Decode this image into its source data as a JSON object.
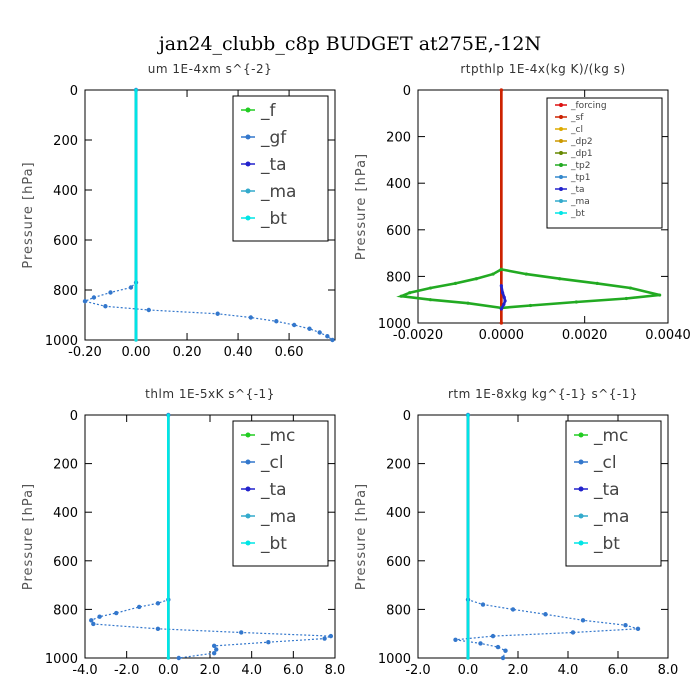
{
  "title": "jan24_clubb_c8p  BUDGET at275E,-12N",
  "colors": {
    "f": "#22cc22",
    "gf": "#3377cc",
    "ta": "#2222cc",
    "ma": "#33aacc",
    "bt": "#00e5e5",
    "forcing": "#dd1111",
    "sf": "#cc2200",
    "cl": "#ddaa00",
    "dp2": "#cc9900",
    "dp1": "#668800",
    "tp2": "#22aa22",
    "tp1": "#3388cc",
    "mc": "#22cc22"
  },
  "chart_data": [
    {
      "type": "line",
      "title": "um   1E-4xm s^{-2}",
      "ylabel": "Pressure [hPa]",
      "xlim": [
        -0.2,
        0.78
      ],
      "ylim": [
        1000,
        0
      ],
      "xticks": [
        -0.2,
        0.0,
        0.2,
        0.4,
        0.6
      ],
      "xtick_labels": [
        "-0.20",
        "0.00",
        "0.20",
        "0.40",
        "0.60"
      ],
      "yticks": [
        0,
        200,
        400,
        600,
        800,
        1000
      ],
      "legend": "top-right",
      "legend_items": [
        "_f",
        "_gf",
        "_ta",
        "_ma",
        "_bt"
      ],
      "series": [
        {
          "name": "_f",
          "color": "f",
          "style": "line",
          "x": [
            0.0,
            0.0
          ],
          "y": [
            0,
            1000
          ]
        },
        {
          "name": "_gf",
          "color": "gf",
          "style": "dotted",
          "x": [
            0.0,
            0.0,
            -0.02,
            -0.1,
            -0.165,
            -0.2,
            -0.12,
            0.05,
            0.32,
            0.45,
            0.55,
            0.62,
            0.68,
            0.72,
            0.75,
            0.77
          ],
          "y": [
            0,
            770,
            790,
            810,
            830,
            845,
            865,
            880,
            895,
            910,
            925,
            940,
            955,
            970,
            985,
            1000
          ]
        },
        {
          "name": "_ta",
          "color": "ta",
          "style": "line",
          "x": [
            0.0,
            0.0
          ],
          "y": [
            0,
            1000
          ]
        },
        {
          "name": "_ma",
          "color": "ma",
          "style": "line",
          "x": [
            0.0,
            0.0
          ],
          "y": [
            0,
            1000
          ]
        },
        {
          "name": "_bt",
          "color": "bt",
          "style": "line",
          "x": [
            0.0,
            0.0
          ],
          "y": [
            0,
            1000
          ]
        }
      ]
    },
    {
      "type": "line",
      "title": "rtpthlp   1E-4x(kg K)/(kg s)",
      "ylabel": "Pressure [hPa]",
      "xlim": [
        -0.002,
        0.004
      ],
      "ylim": [
        1000,
        0
      ],
      "xticks": [
        -0.002,
        0.0,
        0.002,
        0.004
      ],
      "xtick_labels": [
        "-0.0020",
        "0.0000",
        "0.0020",
        "0.0040"
      ],
      "yticks": [
        0,
        200,
        400,
        600,
        800,
        1000
      ],
      "legend": "top-right",
      "legend_items": [
        "_forcing",
        "_sf",
        "_cl",
        "_dp2",
        "_dp1",
        "_tp2",
        "_tp1",
        "_ta",
        "_ma",
        "_bt"
      ],
      "series": [
        {
          "name": "_forcing",
          "color": "forcing",
          "style": "line",
          "x": [
            0.0,
            0.0
          ],
          "y": [
            0,
            1000
          ]
        },
        {
          "name": "_sf",
          "color": "sf",
          "style": "line",
          "x": [
            0.0,
            0.0
          ],
          "y": [
            0,
            1000
          ]
        },
        {
          "name": "_tp2a",
          "color": "tp2",
          "style": "line",
          "x": [
            0.0,
            -0.0002,
            -0.0006,
            -0.0011,
            -0.0017,
            -0.0022,
            -0.0024,
            -0.0017,
            -0.0008,
            0.0
          ],
          "y": [
            770,
            790,
            810,
            830,
            850,
            870,
            885,
            900,
            915,
            935
          ]
        },
        {
          "name": "_tp2b",
          "color": "tp2",
          "style": "line",
          "x": [
            0.0,
            0.0006,
            0.0014,
            0.0023,
            0.0031,
            0.0038,
            0.003,
            0.0018,
            0.0007,
            0.0
          ],
          "y": [
            770,
            790,
            810,
            830,
            850,
            880,
            895,
            910,
            925,
            935
          ]
        },
        {
          "name": "_ta",
          "color": "ta",
          "style": "line",
          "x": [
            0.0,
            3e-05,
            7e-05,
            9e-05,
            6e-05,
            0.0
          ],
          "y": [
            840,
            870,
            890,
            905,
            920,
            940
          ]
        }
      ]
    },
    {
      "type": "line",
      "title": "thlm   1E-5xK s^{-1}",
      "ylabel": "Pressure [hPa]",
      "xlim": [
        -4.0,
        8.0
      ],
      "ylim": [
        1000,
        0
      ],
      "xticks": [
        -4,
        -2,
        0,
        2,
        4,
        6,
        8
      ],
      "xtick_labels": [
        "-4.0",
        "-2.0",
        "0.0",
        "2.0",
        "4.0",
        "6.0",
        "8.0"
      ],
      "yticks": [
        0,
        200,
        400,
        600,
        800,
        1000
      ],
      "legend": "top-right",
      "legend_items": [
        "_mc",
        "_cl",
        "_ta",
        "_ma",
        "_bt"
      ],
      "series": [
        {
          "name": "_mc",
          "color": "mc",
          "style": "line",
          "x": [
            0.0,
            0.0
          ],
          "y": [
            0,
            1000
          ]
        },
        {
          "name": "_cl",
          "color": "gf",
          "style": "dotted",
          "x": [
            0.0,
            0.0,
            -0.5,
            -1.4,
            -2.5,
            -3.3,
            -3.7,
            -3.6,
            -0.5,
            3.5,
            7.8,
            7.5,
            4.8,
            2.2,
            2.3,
            2.2,
            0.5
          ],
          "y": [
            0,
            760,
            775,
            790,
            815,
            830,
            845,
            860,
            880,
            895,
            910,
            920,
            935,
            950,
            965,
            980,
            1000
          ]
        },
        {
          "name": "_ta",
          "color": "ta",
          "style": "line",
          "x": [
            0.0,
            0.0
          ],
          "y": [
            0,
            1000
          ]
        },
        {
          "name": "_bt",
          "color": "bt",
          "style": "line",
          "x": [
            0.0,
            0.0
          ],
          "y": [
            0,
            1000
          ]
        }
      ]
    },
    {
      "type": "line",
      "title": "rtm   1E-8xkg kg^{-1} s^{-1}",
      "ylabel": "Pressure [hPa]",
      "xlim": [
        -2.0,
        8.0
      ],
      "ylim": [
        1000,
        0
      ],
      "xticks": [
        -2,
        0,
        2,
        4,
        6,
        8
      ],
      "xtick_labels": [
        "-2.0",
        "0.0",
        "2.0",
        "4.0",
        "6.0",
        "8.0"
      ],
      "yticks": [
        0,
        200,
        400,
        600,
        800,
        1000
      ],
      "legend": "top-right",
      "legend_items": [
        "_mc",
        "_cl",
        "_ta",
        "_ma",
        "_bt"
      ],
      "series": [
        {
          "name": "_mc",
          "color": "mc",
          "style": "line",
          "x": [
            0.0,
            0.0
          ],
          "y": [
            0,
            1000
          ]
        },
        {
          "name": "_cl",
          "color": "gf",
          "style": "dotted",
          "x": [
            0.0,
            0.0,
            0.6,
            1.8,
            3.1,
            4.6,
            6.3,
            6.8,
            4.2,
            1.0,
            -0.5,
            0.5,
            1.2,
            1.5,
            1.4
          ],
          "y": [
            0,
            760,
            780,
            800,
            820,
            845,
            865,
            880,
            895,
            910,
            925,
            940,
            955,
            970,
            1000
          ]
        },
        {
          "name": "_ta",
          "color": "ta",
          "style": "line",
          "x": [
            0.0,
            0.0
          ],
          "y": [
            0,
            1000
          ]
        },
        {
          "name": "_bt",
          "color": "bt",
          "style": "line",
          "x": [
            0.0,
            0.0
          ],
          "y": [
            0,
            1000
          ]
        }
      ]
    }
  ]
}
